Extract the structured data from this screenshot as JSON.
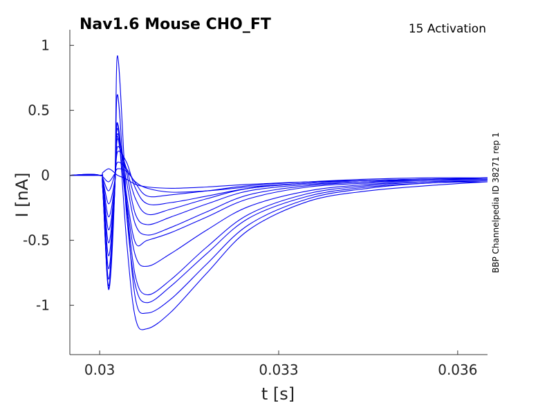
{
  "chart_data": {
    "type": "line",
    "title": "Nav1.6  Mouse  CHO_FT",
    "subtitle": "15  Activation",
    "side_label": "BBP Channelpedia ID 38271 rep 1",
    "xlabel": "t [s]",
    "ylabel": "I [nA]",
    "xlim": [
      0.0295,
      0.0365
    ],
    "ylim": [
      -1.38,
      1.12
    ],
    "x_ticks": [
      0.03,
      0.033,
      0.036
    ],
    "x_tick_labels": [
      "0.03",
      "0.033",
      "0.036"
    ],
    "y_ticks": [
      1,
      0.5,
      0,
      -0.5,
      -1
    ],
    "y_tick_labels": [
      "1",
      "0.5",
      "0",
      "-0.5",
      "-1"
    ],
    "line_color": "#0000ee",
    "grid": false,
    "series": [
      {
        "x": [
          0.0295,
          0.03,
          0.03005,
          0.03015,
          0.03025,
          0.0303,
          0.03045,
          0.0306,
          0.0308,
          0.0312,
          0.0318,
          0.0325,
          0.0335,
          0.0345,
          0.0355,
          0.0365
        ],
        "y": [
          0,
          0,
          0.02,
          0.05,
          0.02,
          0,
          -0.03,
          -0.07,
          -0.09,
          -0.1,
          -0.09,
          -0.07,
          -0.05,
          -0.04,
          -0.03,
          -0.03
        ]
      },
      {
        "x": [
          0.0295,
          0.03,
          0.03005,
          0.03015,
          0.03025,
          0.0303,
          0.03045,
          0.0306,
          0.0308,
          0.0312,
          0.0318,
          0.0325,
          0.0335,
          0.0345,
          0.0355,
          0.0365
        ],
        "y": [
          0,
          0,
          -0.01,
          -0.05,
          0.01,
          0.05,
          0.03,
          -0.05,
          -0.1,
          -0.13,
          -0.12,
          -0.09,
          -0.06,
          -0.04,
          -0.03,
          -0.02
        ]
      },
      {
        "x": [
          0.0295,
          0.03,
          0.03005,
          0.03015,
          0.03025,
          0.0303,
          0.03045,
          0.0306,
          0.0308,
          0.0312,
          0.0318,
          0.0325,
          0.0335,
          0.0345,
          0.0355,
          0.0365
        ],
        "y": [
          0,
          0,
          -0.02,
          -0.12,
          0.0,
          0.1,
          0.05,
          -0.06,
          -0.16,
          -0.15,
          -0.12,
          -0.08,
          -0.05,
          -0.03,
          -0.02,
          -0.02
        ]
      },
      {
        "x": [
          0.0295,
          0.03,
          0.03005,
          0.03015,
          0.03025,
          0.0303,
          0.03045,
          0.0306,
          0.0308,
          0.0312,
          0.0318,
          0.0325,
          0.0335,
          0.0345,
          0.0355,
          0.0365
        ],
        "y": [
          0,
          0,
          -0.03,
          -0.22,
          -0.05,
          0.18,
          0.1,
          -0.1,
          -0.22,
          -0.21,
          -0.16,
          -0.1,
          -0.06,
          -0.04,
          -0.03,
          -0.02
        ]
      },
      {
        "x": [
          0.0295,
          0.03,
          0.03005,
          0.03015,
          0.03025,
          0.0303,
          0.03045,
          0.0306,
          0.0308,
          0.0312,
          0.0318,
          0.0325,
          0.0335,
          0.0345,
          0.0355,
          0.0365
        ],
        "y": [
          0,
          0,
          -0.04,
          -0.32,
          -0.08,
          0.22,
          0.05,
          -0.18,
          -0.3,
          -0.26,
          -0.18,
          -0.1,
          -0.06,
          -0.04,
          -0.03,
          -0.02
        ]
      },
      {
        "x": [
          0.0295,
          0.03,
          0.03005,
          0.03015,
          0.03025,
          0.0303,
          0.03045,
          0.0306,
          0.0308,
          0.0312,
          0.0318,
          0.0325,
          0.0335,
          0.0345,
          0.0355,
          0.0365
        ],
        "y": [
          0,
          0,
          -0.05,
          -0.42,
          -0.1,
          0.28,
          0.02,
          -0.3,
          -0.38,
          -0.32,
          -0.22,
          -0.12,
          -0.07,
          -0.05,
          -0.03,
          -0.03
        ]
      },
      {
        "x": [
          0.0295,
          0.03,
          0.03005,
          0.03015,
          0.03025,
          0.0303,
          0.03045,
          0.0306,
          0.0308,
          0.0312,
          0.0318,
          0.0325,
          0.0335,
          0.0345,
          0.0355,
          0.0365
        ],
        "y": [
          0,
          0,
          -0.06,
          -0.52,
          -0.1,
          0.32,
          -0.05,
          -0.38,
          -0.46,
          -0.4,
          -0.28,
          -0.15,
          -0.08,
          -0.05,
          -0.04,
          -0.03
        ]
      },
      {
        "x": [
          0.0295,
          0.03,
          0.03005,
          0.03015,
          0.03025,
          0.0303,
          0.03045,
          0.0306,
          0.0308,
          0.0312,
          0.0318,
          0.0325,
          0.0335,
          0.0345,
          0.0355,
          0.0365
        ],
        "y": [
          0,
          0,
          -0.07,
          -0.62,
          -0.1,
          0.36,
          -0.15,
          -0.52,
          -0.5,
          -0.44,
          -0.32,
          -0.18,
          -0.09,
          -0.06,
          -0.04,
          -0.03
        ]
      },
      {
        "x": [
          0.0295,
          0.03,
          0.03005,
          0.03015,
          0.03025,
          0.0303,
          0.03045,
          0.0306,
          0.0308,
          0.0312,
          0.0318,
          0.0325,
          0.0335,
          0.0345,
          0.0355,
          0.0365
        ],
        "y": [
          0,
          0,
          -0.08,
          -0.72,
          -0.12,
          0.4,
          -0.2,
          -0.62,
          -0.7,
          -0.6,
          -0.42,
          -0.24,
          -0.12,
          -0.07,
          -0.05,
          -0.04
        ]
      },
      {
        "x": [
          0.0295,
          0.03,
          0.03005,
          0.03015,
          0.03025,
          0.0303,
          0.03045,
          0.0306,
          0.0308,
          0.0312,
          0.0318,
          0.0325,
          0.0335,
          0.0345,
          0.0355,
          0.0365
        ],
        "y": [
          0,
          0,
          -0.09,
          -0.8,
          -0.12,
          0.3,
          -0.25,
          -0.78,
          -0.92,
          -0.8,
          -0.55,
          -0.3,
          -0.14,
          -0.08,
          -0.05,
          -0.04
        ]
      },
      {
        "x": [
          0.0295,
          0.03,
          0.03005,
          0.03015,
          0.03025,
          0.0303,
          0.03045,
          0.0306,
          0.0308,
          0.0312,
          0.0318,
          0.0325,
          0.0335,
          0.0345,
          0.0355,
          0.0365
        ],
        "y": [
          0,
          0,
          -0.1,
          -0.85,
          -0.14,
          0.62,
          -0.3,
          -0.85,
          -0.98,
          -0.85,
          -0.6,
          -0.33,
          -0.16,
          -0.09,
          -0.06,
          -0.04
        ]
      },
      {
        "x": [
          0.0295,
          0.03,
          0.03005,
          0.03015,
          0.03025,
          0.0303,
          0.03045,
          0.0306,
          0.0308,
          0.0312,
          0.0318,
          0.0325,
          0.0335,
          0.0345,
          0.0355,
          0.0365
        ],
        "y": [
          0,
          0,
          -0.1,
          -0.88,
          -0.15,
          0.92,
          -0.2,
          -0.95,
          -1.06,
          -0.95,
          -0.68,
          -0.38,
          -0.18,
          -0.1,
          -0.06,
          -0.05
        ]
      },
      {
        "x": [
          0.0295,
          0.03,
          0.03005,
          0.03015,
          0.03025,
          0.0303,
          0.03045,
          0.0306,
          0.0308,
          0.0312,
          0.0318,
          0.0325,
          0.0335,
          0.0345,
          0.0355,
          0.0365
        ],
        "y": [
          0,
          0,
          -0.1,
          -0.87,
          -0.15,
          0.4,
          -0.5,
          -1.1,
          -1.18,
          -1.05,
          -0.75,
          -0.42,
          -0.2,
          -0.12,
          -0.08,
          -0.05
        ]
      }
    ]
  }
}
